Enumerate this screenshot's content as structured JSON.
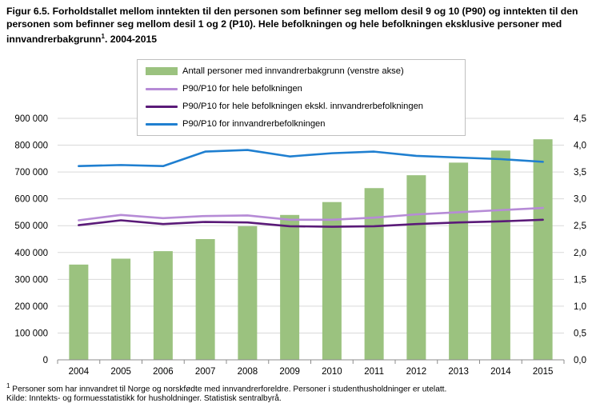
{
  "title": "Figur 6.5. Forholdstallet mellom inntekten til den personen som befinner seg mellom desil 9 og 10 (P90) og inntekten til den personen som befinner seg mellom desil 1 og 2 (P10). Hele befolkningen og hele befolkningen eksklusive personer med innvandrerbakgrunn",
  "title_sup": "1",
  "title_suffix": ". 2004-2015",
  "footnote_sup": "1",
  "footnote": " Personer som har innvandret til Norge og norskfødte med innvandrerforeldre. Personer i studenthusholdninger er utelatt.",
  "source": "Kilde: Inntekts- og formuesstatistikk for husholdninger. Statistisk sentralbyrå.",
  "colors": {
    "bar": "#9bc27f",
    "line_hele": "#b68bd6",
    "line_ekskl": "#5a1a78",
    "line_innv": "#1f7fd0"
  },
  "chart_data": {
    "type": "bar",
    "categories": [
      "2004",
      "2005",
      "2006",
      "2007",
      "2008",
      "2009",
      "2010",
      "2011",
      "2012",
      "2013",
      "2014",
      "2015"
    ],
    "series": [
      {
        "name": "Antall personer med innvandrerbakgrunn (venstre akse)",
        "type": "bar",
        "axis": "left",
        "values": [
          355000,
          377000,
          405000,
          450000,
          498000,
          540000,
          588000,
          640000,
          688000,
          735000,
          780000,
          822000
        ]
      },
      {
        "name": "P90/P10 for hele befolkningen",
        "type": "line",
        "axis": "right",
        "values": [
          2.6,
          2.7,
          2.64,
          2.68,
          2.69,
          2.61,
          2.61,
          2.65,
          2.71,
          2.75,
          2.79,
          2.83
        ]
      },
      {
        "name": "P90/P10 for hele befolkningen ekskl. innvandrerbefolkningen",
        "type": "line",
        "axis": "right",
        "values": [
          2.51,
          2.6,
          2.53,
          2.57,
          2.56,
          2.49,
          2.48,
          2.49,
          2.53,
          2.56,
          2.58,
          2.61
        ]
      },
      {
        "name": "P90/P10 for innvandrerbefolkningen",
        "type": "line",
        "axis": "right",
        "values": [
          3.61,
          3.63,
          3.61,
          3.88,
          3.91,
          3.79,
          3.85,
          3.88,
          3.8,
          3.77,
          3.74,
          3.69
        ]
      }
    ],
    "y_left_ticks": [
      "0",
      "100 000",
      "200 000",
      "300 000",
      "400 000",
      "500 000",
      "600 000",
      "700 000",
      "800 000",
      "900 000"
    ],
    "y_right_ticks": [
      "0,0",
      "0,5",
      "1,0",
      "1,5",
      "2,0",
      "2,5",
      "3,0",
      "3,5",
      "4,0",
      "4,5"
    ],
    "ylim_left": [
      0,
      900000
    ],
    "ylim_right": [
      0,
      4.5
    ],
    "grid": true,
    "legend_position": "top-center"
  }
}
